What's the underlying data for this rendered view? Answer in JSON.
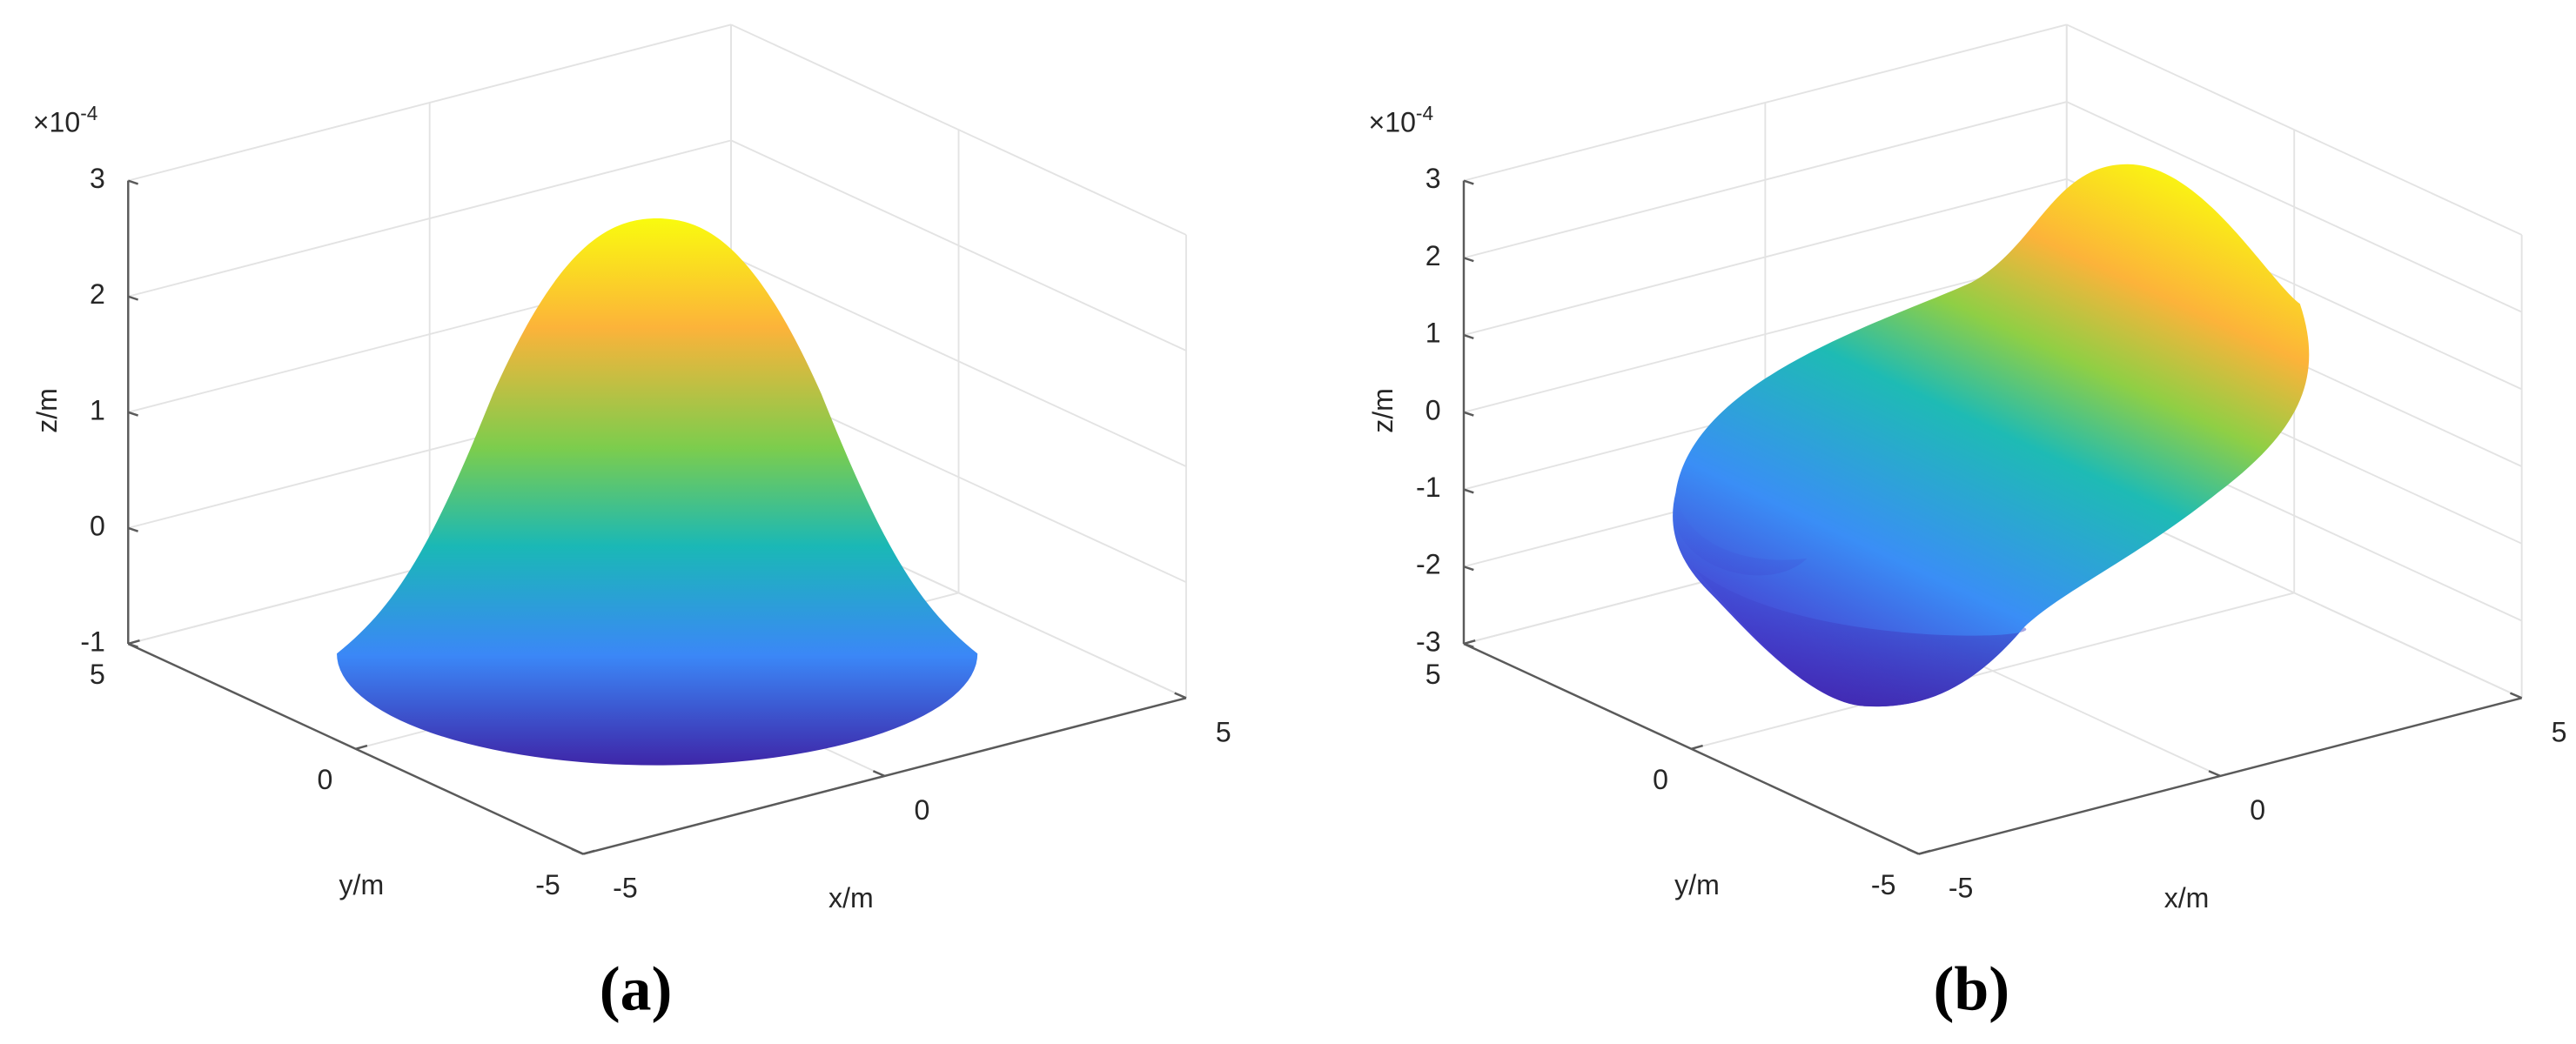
{
  "chart_data": [
    {
      "type": "surface",
      "panel": "(a)",
      "xlabel": "x/m",
      "ylabel": "y/m",
      "zlabel": "z/m",
      "z_scale_base": "×10",
      "z_scale_exponent": "-4",
      "xlim": [
        -5,
        5
      ],
      "ylim": [
        -5,
        5
      ],
      "zlim": [
        -1,
        3
      ],
      "xticks": [
        -5,
        0,
        5
      ],
      "yticks": [
        -5,
        0,
        5
      ],
      "zticks": [
        -1,
        0,
        1,
        2,
        3
      ],
      "grid": true
    },
    {
      "type": "surface",
      "panel": "(b)",
      "xlabel": "x/m",
      "ylabel": "y/m",
      "zlabel": "z/m",
      "z_scale_base": "×10",
      "z_scale_exponent": "-4",
      "xlim": [
        -5,
        5
      ],
      "ylim": [
        -5,
        5
      ],
      "zlim": [
        -3,
        3
      ],
      "xticks": [
        -5,
        0,
        5
      ],
      "yticks": [
        -5,
        0,
        5
      ],
      "zticks": [
        -3,
        -2,
        -1,
        0,
        1,
        2,
        3
      ],
      "grid": true
    }
  ]
}
